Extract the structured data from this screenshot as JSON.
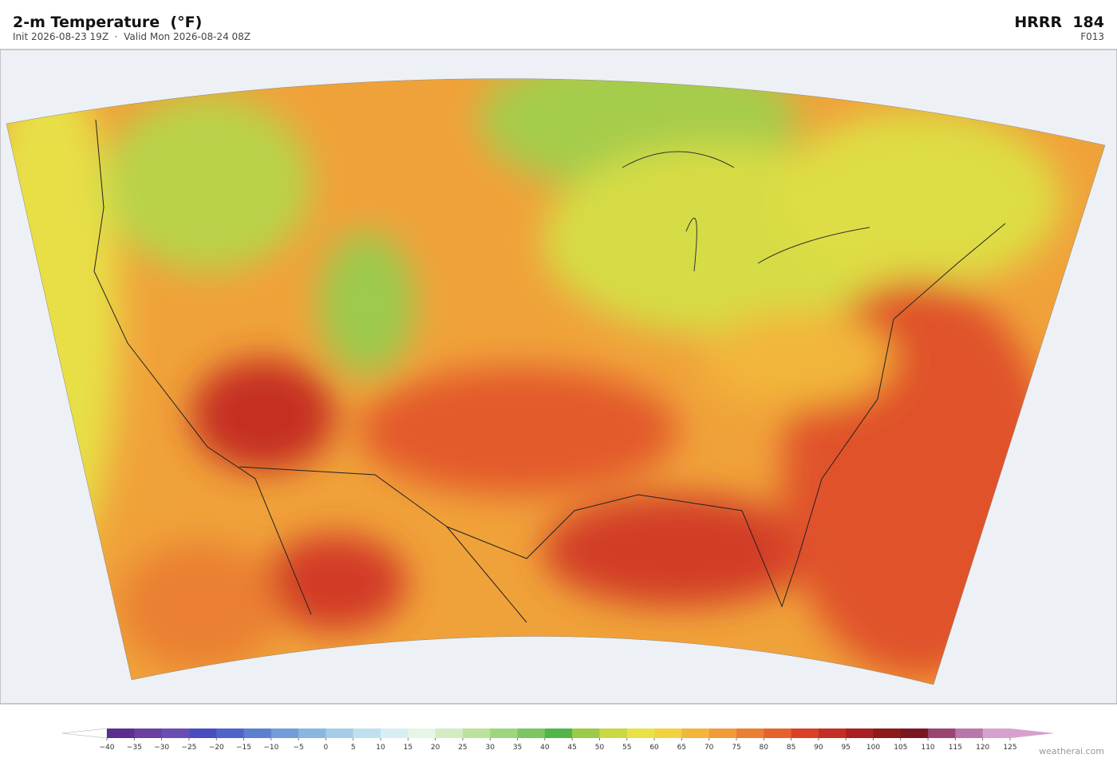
{
  "header": {
    "title": "2-m Temperature  (°F)",
    "subtitle": "Init 2026-08-23 19Z  ·  Valid Mon 2026-08-24 08Z",
    "model": "HRRR  184",
    "forecast_hour": "F013"
  },
  "colorbar": {
    "ticks": [
      {
        "value": -40,
        "label": "−40"
      },
      {
        "value": -35,
        "label": "−35"
      },
      {
        "value": -30,
        "label": "−30"
      },
      {
        "value": -25,
        "label": "−25"
      },
      {
        "value": -20,
        "label": "−20"
      },
      {
        "value": -15,
        "label": "−15"
      },
      {
        "value": -10,
        "label": "−10"
      },
      {
        "value": -5,
        "label": "−5"
      },
      0,
      5,
      10,
      15,
      20,
      25,
      30,
      35,
      40,
      45,
      50,
      55,
      60,
      65,
      70,
      75,
      80,
      85,
      90,
      95,
      100,
      105,
      110,
      115,
      120,
      125
    ],
    "colors": [
      "#5b2d91",
      "#6b3fa0",
      "#6a4cb4",
      "#4a4dbf",
      "#4f63c9",
      "#5b80d0",
      "#729dd8",
      "#8ab7e0",
      "#a5cde8",
      "#bfe0ef",
      "#d7eef4",
      "#e6f5e6",
      "#d4ecc4",
      "#bde29d",
      "#9ed67d",
      "#7cc663",
      "#52b54a",
      "#9bcb48",
      "#c9d844",
      "#e8e246",
      "#f3d23f",
      "#f2b63b",
      "#ef9c38",
      "#ea7f33",
      "#e5622c",
      "#d94227",
      "#c52e24",
      "#a8201f",
      "#8c1a1a",
      "#7a1620",
      "#9a4470",
      "#b977ab",
      "#d6a2cd"
    ],
    "under_color": "#ffffff",
    "over_color": "#d6a2cd"
  },
  "footer": {
    "credit": "weatherai.com"
  }
}
